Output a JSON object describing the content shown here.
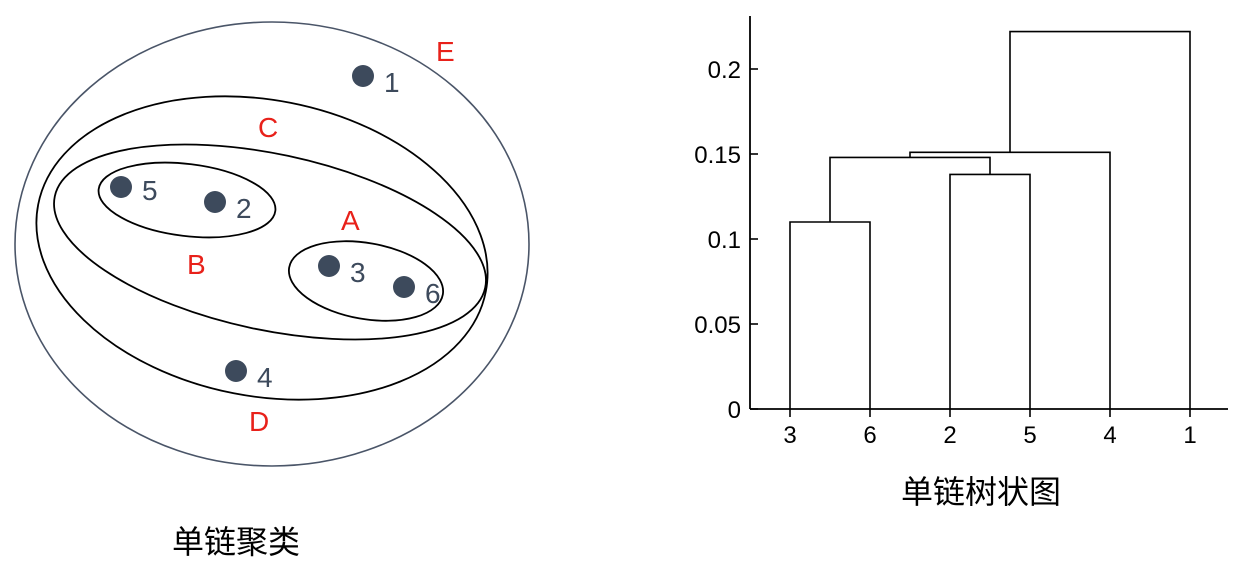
{
  "cluster_diagram": {
    "caption": "单链聚类",
    "points": [
      {
        "id": "1",
        "label": "1"
      },
      {
        "id": "2",
        "label": "2"
      },
      {
        "id": "3",
        "label": "3"
      },
      {
        "id": "4",
        "label": "4"
      },
      {
        "id": "5",
        "label": "5"
      },
      {
        "id": "6",
        "label": "6"
      }
    ],
    "clusters": [
      {
        "id": "A",
        "label": "A",
        "members": [
          "3",
          "6"
        ]
      },
      {
        "id": "B",
        "label": "B",
        "members": [
          "5",
          "2"
        ]
      },
      {
        "id": "C",
        "label": "C",
        "members": [
          "5",
          "2",
          "3",
          "6"
        ]
      },
      {
        "id": "D",
        "label": "D",
        "members": [
          "5",
          "2",
          "3",
          "6",
          "4"
        ]
      },
      {
        "id": "E",
        "label": "E",
        "members": [
          "5",
          "2",
          "3",
          "6",
          "4",
          "1"
        ]
      }
    ],
    "colors": {
      "point": "#3d4a5c",
      "cluster_label": "#e8211a",
      "outer_ellipse": "#4a5568",
      "inner_ellipse": "#000000"
    }
  },
  "dendrogram": {
    "caption": "单链树状图",
    "y_axis": {
      "min": 0,
      "max": 0.2,
      "ticks": [
        "0",
        "0.05",
        "0.1",
        "0.15",
        "0.2"
      ],
      "tick_values": [
        0,
        0.05,
        0.1,
        0.15,
        0.2
      ]
    },
    "leaf_order": [
      "3",
      "6",
      "2",
      "5",
      "4",
      "1"
    ],
    "merges": [
      {
        "left": "3",
        "right": "6",
        "height": 0.11
      },
      {
        "left": "2",
        "right": "5",
        "height": 0.138
      },
      {
        "left": "3,6",
        "right": "2,5",
        "height": 0.148
      },
      {
        "left": "3,6,2,5",
        "right": "4",
        "height": 0.151
      },
      {
        "left": "3,6,2,5,4",
        "right": "1",
        "height": 0.222
      }
    ]
  }
}
